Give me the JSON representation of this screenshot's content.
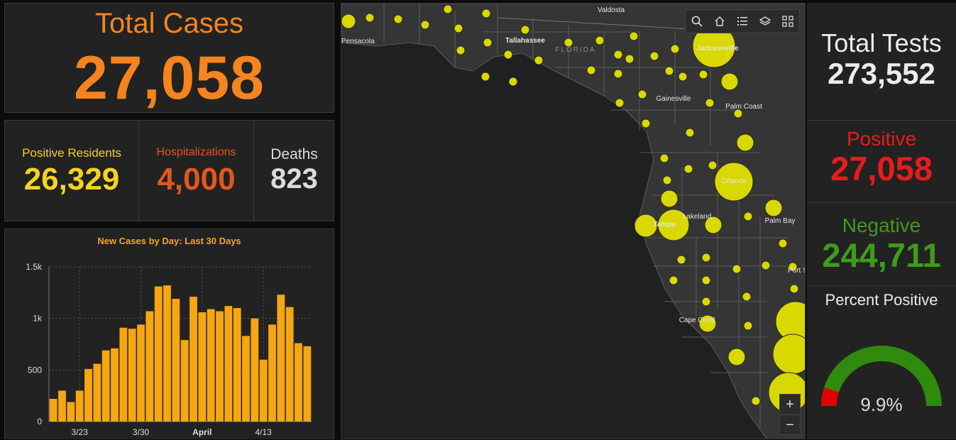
{
  "total_cases": {
    "label": "Total Cases",
    "value": "27,058",
    "color": "#f5841f"
  },
  "stats": {
    "positive_residents": {
      "label": "Positive Residents",
      "value": "26,329",
      "color": "#f4d221"
    },
    "hospitalizations": {
      "label": "Hospitalizations",
      "value": "4,000",
      "color": "#e2571e"
    },
    "deaths": {
      "label": "Deaths",
      "value": "823",
      "color": "#dcdcdc"
    }
  },
  "chart_data": {
    "type": "bar",
    "title": "New Cases by Day: Last 30 Days",
    "xlabel": "",
    "ylabel": "",
    "ylim": [
      0,
      1500
    ],
    "y_ticks": [
      "0",
      "500",
      "1k",
      "1.5k"
    ],
    "y_tick_values": [
      0,
      500,
      1000,
      1500
    ],
    "x_tick_labels": [
      "3/23",
      "3/30",
      "April",
      "4/13"
    ],
    "x_tick_index": [
      3.5,
      10.5,
      17.5,
      24.5
    ],
    "grid": true,
    "bar_color": "#f5a611",
    "values": [
      220,
      300,
      190,
      300,
      510,
      560,
      690,
      710,
      910,
      900,
      940,
      1070,
      1310,
      1320,
      1190,
      790,
      1210,
      1060,
      1090,
      1070,
      1120,
      1100,
      830,
      1000,
      600,
      940,
      1230,
      1110,
      760,
      730
    ]
  },
  "map": {
    "city_labels": [
      "Valdosta",
      "Pensacola",
      "Tallahassee",
      "FLORIDA",
      "Jacksonville",
      "Gainesville",
      "Palm Coast",
      "Orlando",
      "Lakeland",
      "Tampa",
      "Palm Bay",
      "Port St. Lucie",
      "Cape Coral"
    ],
    "toolbar_icons": [
      "search-icon",
      "home-icon",
      "legend-icon",
      "layers-icon",
      "qr-icon"
    ],
    "zoom_in": "+",
    "zoom_out": "−",
    "marker_color": "#d9d800"
  },
  "tests": {
    "total": {
      "label": "Total Tests",
      "value": "273,552",
      "color": "#ececec"
    },
    "positive": {
      "label": "Positive",
      "value": "27,058",
      "color": "#e81b1b"
    },
    "negative": {
      "label": "Negative",
      "value": "244,711",
      "color": "#3f9b1a"
    },
    "percent_positive": {
      "label": "Percent Positive",
      "value": "9.9%",
      "fraction": 0.099,
      "color_low": "#e10000",
      "color_high": "#2f8a0d"
    }
  }
}
